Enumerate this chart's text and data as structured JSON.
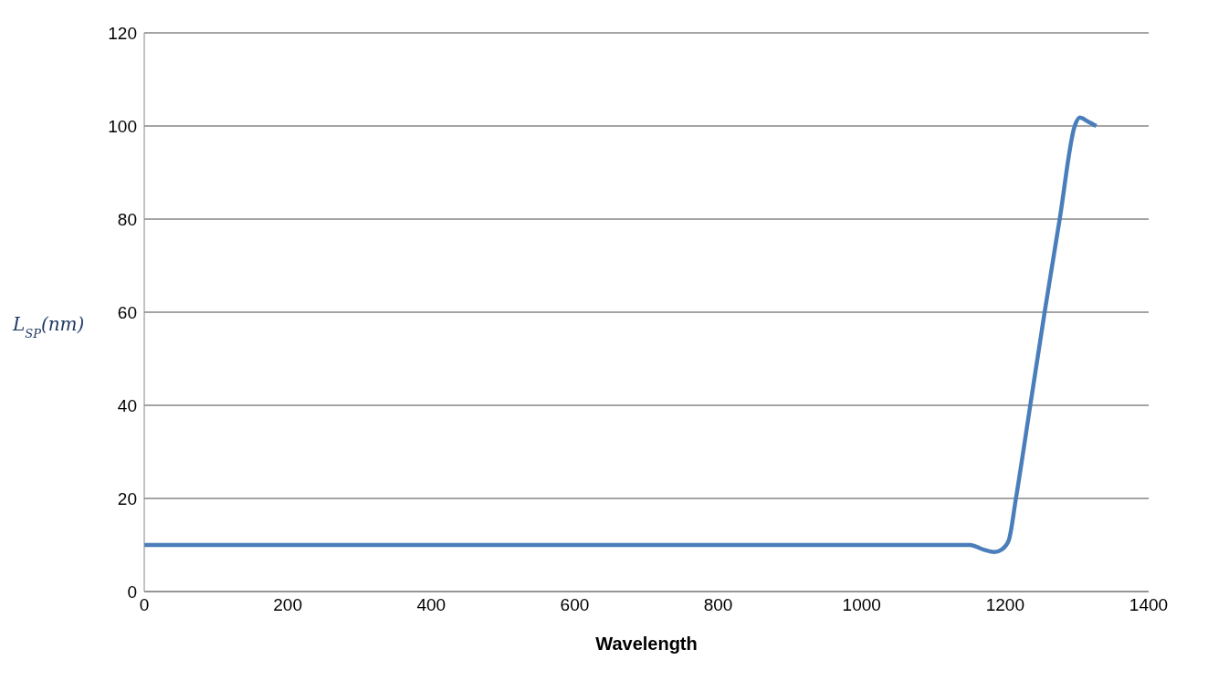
{
  "chart_data": {
    "type": "line",
    "xlabel": "Wavelength",
    "ylabel": "L$_{SP}$(nm)",
    "x": [
      0,
      200,
      400,
      600,
      800,
      1000,
      1151,
      1170,
      1185,
      1195,
      1205,
      1215,
      1235,
      1255,
      1276,
      1297,
      1304,
      1315,
      1327
    ],
    "series": [
      {
        "color": "#4a7ebb",
        "values": [
          10,
          10,
          10,
          10,
          10,
          10,
          10,
          9,
          8.5,
          9,
          11,
          20,
          40,
          60,
          80,
          100,
          101.8,
          101,
          100
        ]
      }
    ],
    "xlim": [
      0,
      1400
    ],
    "xticks": [
      0,
      200,
      400,
      600,
      800,
      1000,
      1200,
      1400
    ],
    "ylim": [
      0,
      120
    ],
    "yticks": [
      0,
      20,
      40,
      60,
      80,
      100,
      120
    ],
    "grid": "y",
    "legend": false,
    "marker": "none",
    "line_style": "solid"
  }
}
